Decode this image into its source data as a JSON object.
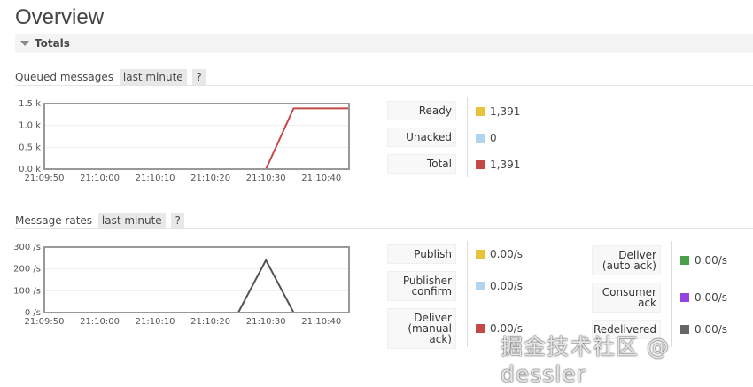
{
  "page_title": "Overview",
  "totals_label": "Totals",
  "queued": {
    "title": "Queued messages",
    "range": "last minute",
    "help": "?",
    "legend": [
      {
        "label": "Ready",
        "value": "1,391",
        "color": "#e8c23b"
      },
      {
        "label": "Unacked",
        "value": "0",
        "color": "#b3d4ee"
      },
      {
        "label": "Total",
        "value": "1,391",
        "color": "#c44848"
      }
    ]
  },
  "rates": {
    "title": "Message rates",
    "range": "last minute",
    "help": "?",
    "legend_left": [
      {
        "label": "Publish",
        "value": "0.00/s",
        "color": "#e8c23b"
      },
      {
        "label": "Publisher confirm",
        "value": "0.00/s",
        "color": "#b3d4ee"
      },
      {
        "label": "Deliver (manual ack)",
        "value": "0.00/s",
        "color": "#c44848"
      }
    ],
    "legend_right": [
      {
        "label": "Deliver (auto ack)",
        "value": "0.00/s",
        "color": "#4aa04a"
      },
      {
        "label": "Consumer ack",
        "value": "0.00/s",
        "color": "#9444e0"
      },
      {
        "label": "Redelivered",
        "value": "0.00/s",
        "color": "#666666"
      }
    ]
  },
  "chart_data": [
    {
      "type": "line",
      "xticks": [
        "21:09:50",
        "21:10:00",
        "21:10:10",
        "21:10:20",
        "21:10:30",
        "21:10:40"
      ],
      "yticks": [
        "0.0 k",
        "0.5 k",
        "1.0 k",
        "1.5 k"
      ],
      "ylim": [
        0,
        1500
      ],
      "xlim": [
        "21:09:50",
        "21:10:45"
      ],
      "series": [
        {
          "name": "Unacked",
          "color": "#b3d4ee",
          "points": [
            [
              "21:09:50",
              0
            ],
            [
              "21:10:45",
              0
            ]
          ]
        },
        {
          "name": "Total",
          "color": "#c44848",
          "points": [
            [
              "21:09:50",
              0
            ],
            [
              "21:10:30",
              0
            ],
            [
              "21:10:35",
              1391
            ],
            [
              "21:10:45",
              1391
            ]
          ]
        }
      ]
    },
    {
      "type": "line",
      "xticks": [
        "21:09:50",
        "21:10:00",
        "21:10:10",
        "21:10:20",
        "21:10:30",
        "21:10:40"
      ],
      "yticks": [
        "0 /s",
        "100 /s",
        "200 /s",
        "300 /s"
      ],
      "ylim": [
        0,
        300
      ],
      "xlim": [
        "21:09:50",
        "21:10:45"
      ],
      "series": [
        {
          "name": "Deliver (manual ack)",
          "color": "#c44848",
          "points": [
            [
              "21:09:50",
              0
            ],
            [
              "21:10:45",
              0
            ]
          ]
        },
        {
          "name": "Redelivered",
          "color": "#555555",
          "points": [
            [
              "21:09:50",
              0
            ],
            [
              "21:10:25",
              0
            ],
            [
              "21:10:30",
              240
            ],
            [
              "21:10:35",
              0
            ],
            [
              "21:10:45",
              0
            ]
          ]
        }
      ]
    }
  ],
  "watermark": "掘金技术社区 @ dessler"
}
